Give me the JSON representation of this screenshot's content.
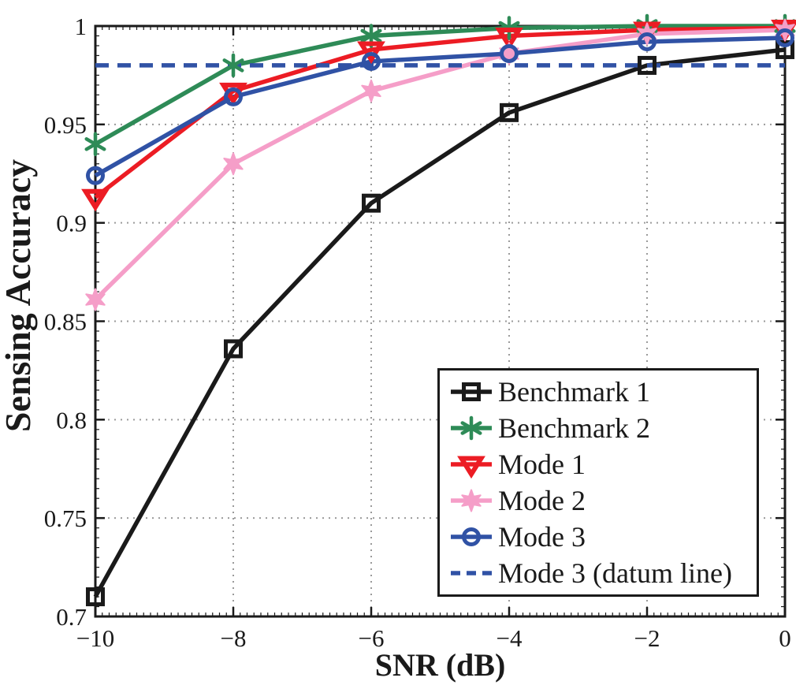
{
  "figure": {
    "background": "#ffffff",
    "axis_color": "#1a1a1a",
    "grid_color": "#9a9a9a"
  },
  "chart_data": {
    "type": "line",
    "title": "",
    "xlabel": "SNR (dB)",
    "ylabel": "Sensing Accuracy",
    "xlim": [
      -10,
      0
    ],
    "ylim": [
      0.7,
      1.0
    ],
    "grid": "dotted",
    "legend_position": "lower-right",
    "x": [
      -10,
      -8,
      -6,
      -4,
      -2,
      0
    ],
    "xticks": [
      -10,
      -8,
      -6,
      -4,
      -2,
      0
    ],
    "xtick_labels": [
      "−10",
      "−8",
      "−6",
      "−4",
      "−2",
      "0"
    ],
    "yticks": [
      0.7,
      0.75,
      0.8,
      0.85,
      0.9,
      0.95,
      1.0
    ],
    "ytick_labels": [
      "0.7",
      "0.75",
      "0.8",
      "0.85",
      "0.9",
      "0.95",
      "1"
    ],
    "series": [
      {
        "name": "Benchmark 1",
        "color": "#1a1a1a",
        "marker": "square",
        "line_style": "solid",
        "values": [
          0.71,
          0.836,
          0.91,
          0.956,
          0.98,
          0.988
        ]
      },
      {
        "name": "Benchmark 2",
        "color": "#2e8b57",
        "marker": "asterisk",
        "line_style": "solid",
        "values": [
          0.94,
          0.98,
          0.995,
          0.999,
          1.0,
          1.0
        ]
      },
      {
        "name": "Mode 1",
        "color": "#ec1c24",
        "marker": "triangle-down",
        "line_style": "solid",
        "values": [
          0.913,
          0.967,
          0.988,
          0.995,
          0.998,
          0.999
        ]
      },
      {
        "name": "Mode 2",
        "color": "#f59ec8",
        "marker": "hexagram",
        "line_style": "solid",
        "values": [
          0.861,
          0.93,
          0.967,
          0.986,
          0.996,
          0.998
        ]
      },
      {
        "name": "Mode 3",
        "color": "#3052a5",
        "marker": "circle",
        "line_style": "solid",
        "values": [
          0.924,
          0.964,
          0.982,
          0.986,
          0.992,
          0.994
        ]
      },
      {
        "name": "Mode 3 (datum line)",
        "color": "#3052a5",
        "marker": "none",
        "line_style": "dashed",
        "values": [
          0.98,
          0.98,
          0.98,
          0.98,
          0.98,
          0.98
        ]
      }
    ]
  }
}
